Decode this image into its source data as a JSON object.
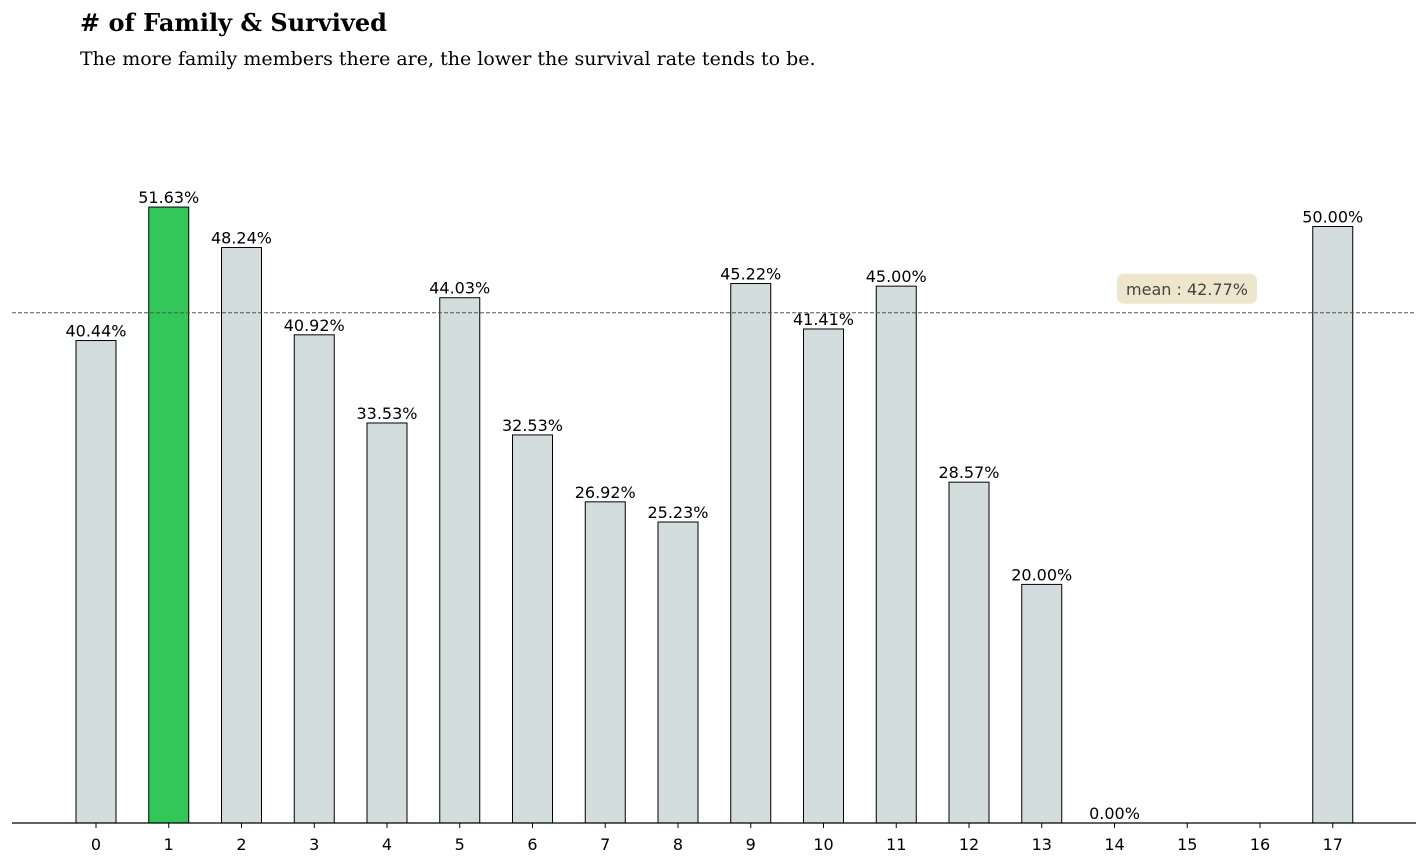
{
  "chart_data": {
    "type": "bar",
    "title": "# of Family & Survived",
    "subtitle": "The more family members there are, the lower the survival rate tends to be.",
    "xlabel": "",
    "ylabel": "",
    "categories": [
      "0",
      "1",
      "2",
      "3",
      "4",
      "5",
      "6",
      "7",
      "8",
      "9",
      "10",
      "11",
      "12",
      "13",
      "14",
      "15",
      "16",
      "17"
    ],
    "values": [
      40.44,
      51.63,
      48.24,
      40.92,
      33.53,
      44.03,
      32.53,
      26.92,
      25.23,
      45.22,
      41.41,
      45.0,
      28.57,
      20.0,
      0.0,
      null,
      null,
      50.0
    ],
    "data_labels": [
      "40.44%",
      "51.63%",
      "48.24%",
      "40.92%",
      "33.53%",
      "44.03%",
      "32.53%",
      "26.92%",
      "25.23%",
      "45.22%",
      "41.41%",
      "45.00%",
      "28.57%",
      "20.00%",
      "0.00%",
      "",
      "",
      "50.00%"
    ],
    "highlight_index": 1,
    "mean": 42.77,
    "mean_label": "mean : 42.77%",
    "ylim": [
      0,
      60
    ],
    "grid": false,
    "legend": "none",
    "colors": {
      "bar": "#d4dddd",
      "highlight": "#33c659",
      "bar_edge": "#000000",
      "mean_line": "#555555",
      "mean_box": "#ede6cc",
      "mean_text": "#444444"
    }
  }
}
